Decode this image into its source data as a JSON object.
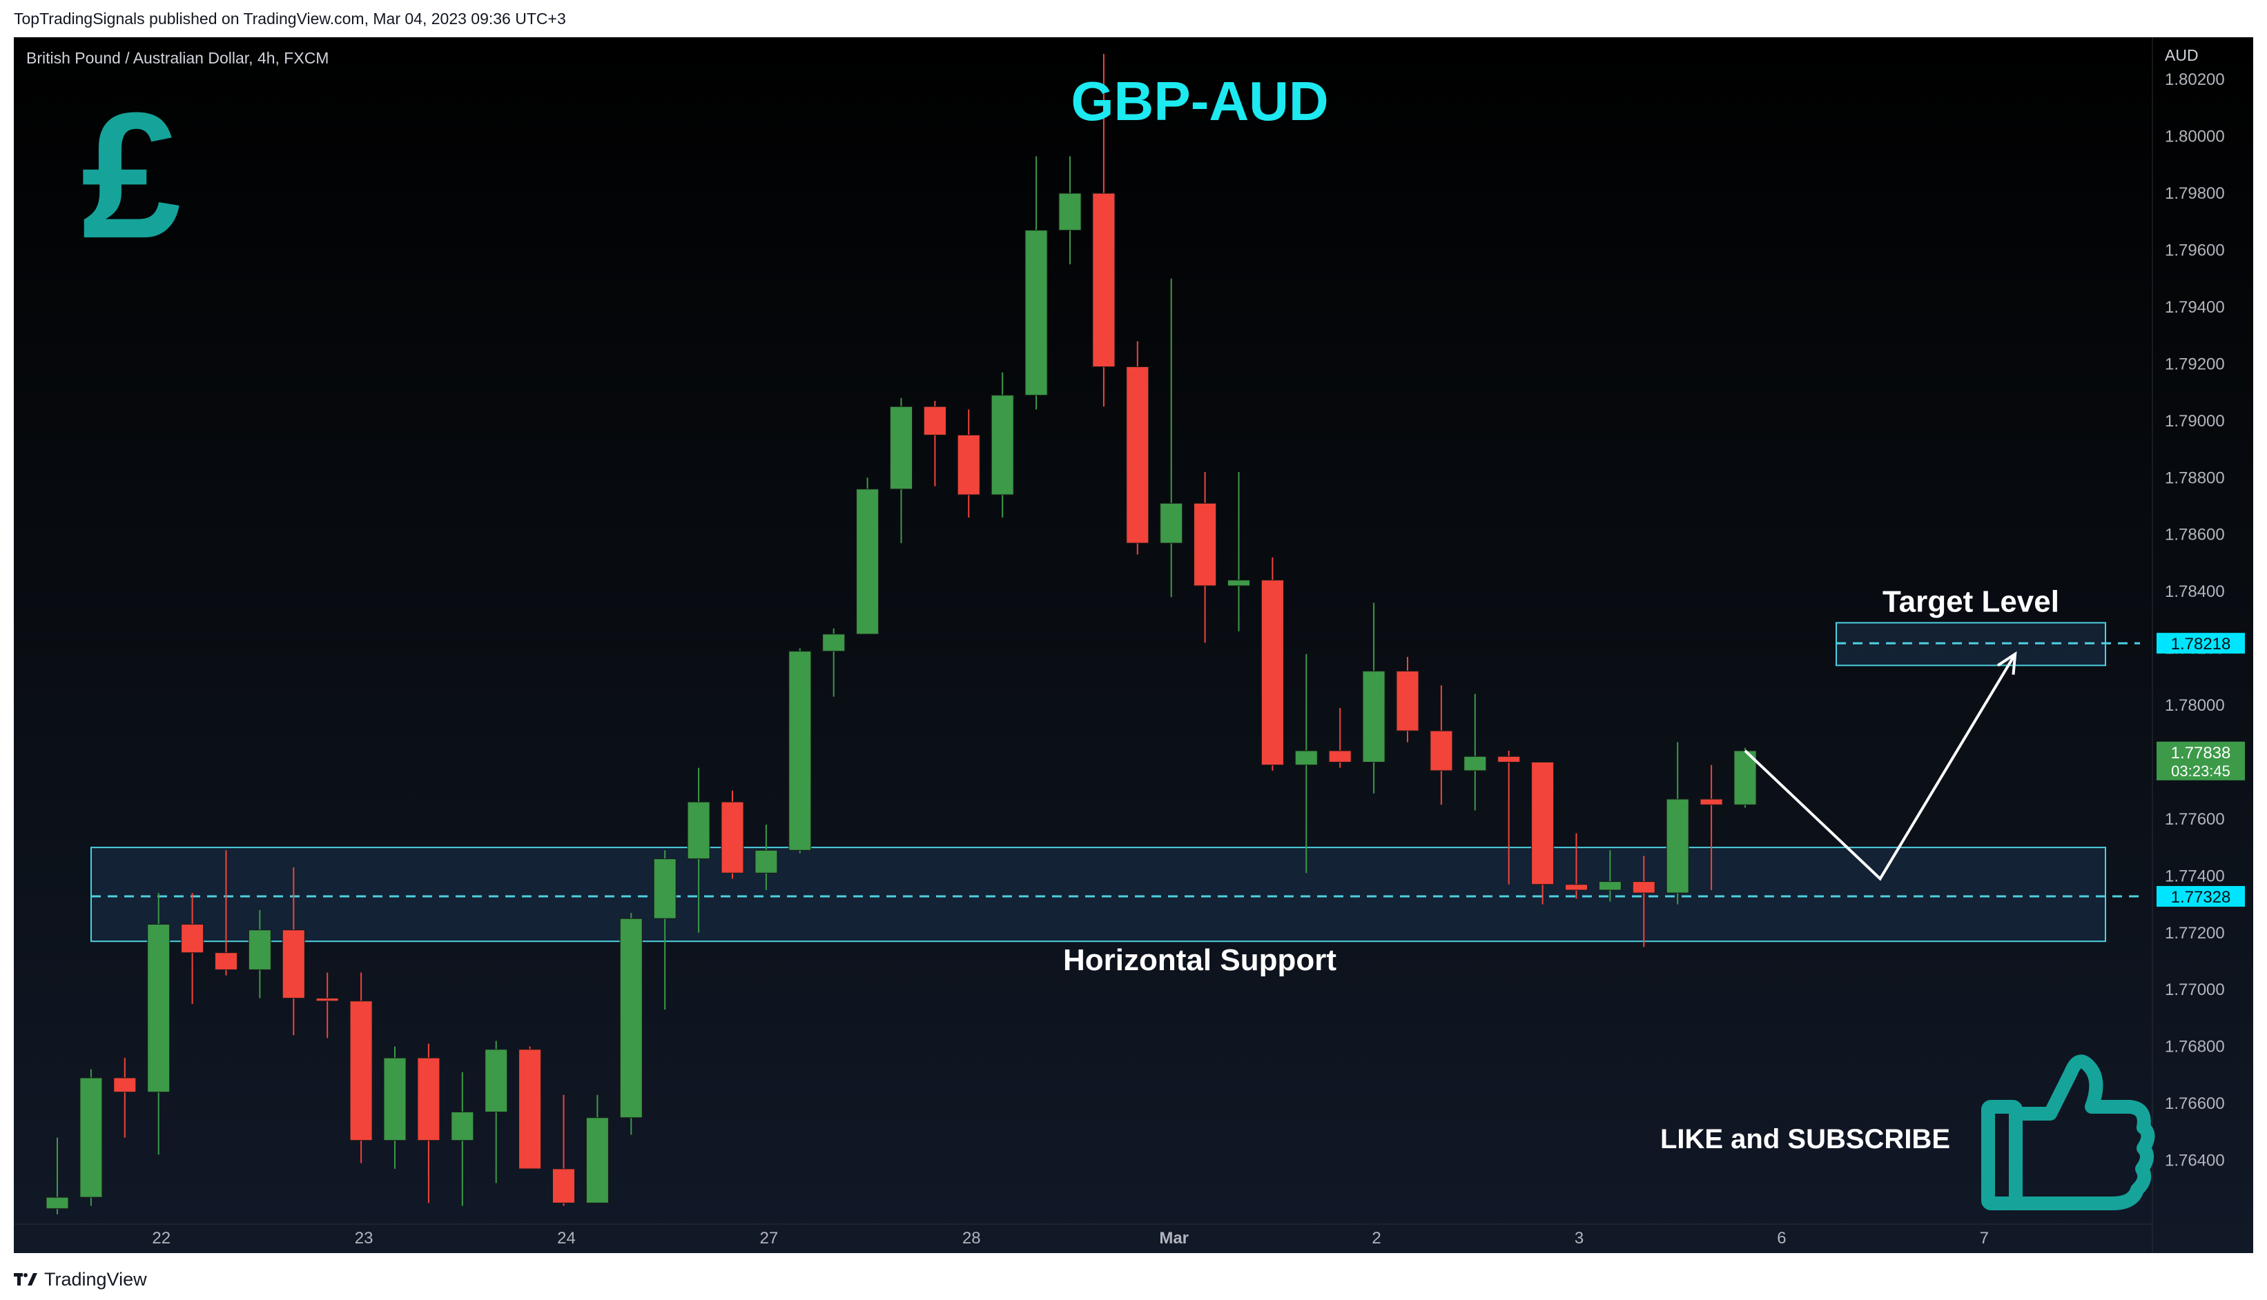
{
  "header": {
    "text": "TopTradingSignals published on TradingView.com, Mar 04, 2023 09:36 UTC+3"
  },
  "footer": {
    "brand": "TradingView"
  },
  "chart_data": {
    "type": "candlestick",
    "symbol_label": "British Pound / Australian Dollar, 4h, FXCM",
    "title": "GBP-AUD",
    "currency": "AUD",
    "ylim": [
      1.762,
      1.803
    ],
    "y_ticks": [
      "1.80200",
      "1.80000",
      "1.79800",
      "1.79600",
      "1.79400",
      "1.79200",
      "1.79000",
      "1.78800",
      "1.78600",
      "1.78400",
      "1.78200",
      "1.78000",
      "1.77800",
      "1.77600",
      "1.77400",
      "1.77200",
      "1.77000",
      "1.76800",
      "1.76600",
      "1.76400"
    ],
    "x_labels": [
      {
        "label": "22",
        "index": 3
      },
      {
        "label": "23",
        "index": 9
      },
      {
        "label": "24",
        "index": 15
      },
      {
        "label": "27",
        "index": 21
      },
      {
        "label": "28",
        "index": 27
      },
      {
        "label": "Mar",
        "index": 33
      },
      {
        "label": "2",
        "index": 39
      },
      {
        "label": "3",
        "index": 45
      },
      {
        "label": "6",
        "index": 51
      },
      {
        "label": "7",
        "index": 57
      }
    ],
    "candles": [
      {
        "o": 1.7623,
        "h": 1.7648,
        "l": 1.7621,
        "c": 1.7627
      },
      {
        "o": 1.7627,
        "h": 1.7672,
        "l": 1.7624,
        "c": 1.7669
      },
      {
        "o": 1.7669,
        "h": 1.7676,
        "l": 1.7648,
        "c": 1.7664
      },
      {
        "o": 1.7664,
        "h": 1.7734,
        "l": 1.7642,
        "c": 1.7723
      },
      {
        "o": 1.7723,
        "h": 1.7734,
        "l": 1.7695,
        "c": 1.7713
      },
      {
        "o": 1.7713,
        "h": 1.7749,
        "l": 1.7705,
        "c": 1.7707
      },
      {
        "o": 1.7707,
        "h": 1.7728,
        "l": 1.7697,
        "c": 1.7721
      },
      {
        "o": 1.7721,
        "h": 1.7743,
        "l": 1.7684,
        "c": 1.7697
      },
      {
        "o": 1.7697,
        "h": 1.7706,
        "l": 1.7683,
        "c": 1.7696
      },
      {
        "o": 1.7696,
        "h": 1.7706,
        "l": 1.7639,
        "c": 1.7647
      },
      {
        "o": 1.7647,
        "h": 1.768,
        "l": 1.7637,
        "c": 1.7676
      },
      {
        "o": 1.7676,
        "h": 1.7681,
        "l": 1.7625,
        "c": 1.7647
      },
      {
        "o": 1.7647,
        "h": 1.7671,
        "l": 1.7624,
        "c": 1.7657
      },
      {
        "o": 1.7657,
        "h": 1.7682,
        "l": 1.7632,
        "c": 1.7679
      },
      {
        "o": 1.7679,
        "h": 1.768,
        "l": 1.7637,
        "c": 1.7637
      },
      {
        "o": 1.7637,
        "h": 1.7663,
        "l": 1.7624,
        "c": 1.7625
      },
      {
        "o": 1.7625,
        "h": 1.7663,
        "l": 1.7625,
        "c": 1.7655
      },
      {
        "o": 1.7655,
        "h": 1.7727,
        "l": 1.7649,
        "c": 1.7725
      },
      {
        "o": 1.7725,
        "h": 1.7749,
        "l": 1.7693,
        "c": 1.7746
      },
      {
        "o": 1.7746,
        "h": 1.7778,
        "l": 1.772,
        "c": 1.7766
      },
      {
        "o": 1.7766,
        "h": 1.777,
        "l": 1.7739,
        "c": 1.7741
      },
      {
        "o": 1.7741,
        "h": 1.7758,
        "l": 1.7735,
        "c": 1.7749
      },
      {
        "o": 1.7749,
        "h": 1.782,
        "l": 1.7748,
        "c": 1.7819
      },
      {
        "o": 1.7819,
        "h": 1.7827,
        "l": 1.7803,
        "c": 1.7825
      },
      {
        "o": 1.7825,
        "h": 1.788,
        "l": 1.7825,
        "c": 1.7876
      },
      {
        "o": 1.7876,
        "h": 1.7908,
        "l": 1.7857,
        "c": 1.7905
      },
      {
        "o": 1.7905,
        "h": 1.7907,
        "l": 1.7877,
        "c": 1.7895
      },
      {
        "o": 1.7895,
        "h": 1.7904,
        "l": 1.7866,
        "c": 1.7874
      },
      {
        "o": 1.7874,
        "h": 1.7917,
        "l": 1.7866,
        "c": 1.7909
      },
      {
        "o": 1.7909,
        "h": 1.7993,
        "l": 1.7904,
        "c": 1.7967
      },
      {
        "o": 1.7967,
        "h": 1.7993,
        "l": 1.7955,
        "c": 1.798
      },
      {
        "o": 1.798,
        "h": 1.8029,
        "l": 1.7905,
        "c": 1.7919
      },
      {
        "o": 1.7919,
        "h": 1.7928,
        "l": 1.7853,
        "c": 1.7857
      },
      {
        "o": 1.7857,
        "h": 1.795,
        "l": 1.7838,
        "c": 1.7871
      },
      {
        "o": 1.7871,
        "h": 1.7882,
        "l": 1.7822,
        "c": 1.7842
      },
      {
        "o": 1.7842,
        "h": 1.7882,
        "l": 1.7826,
        "c": 1.7844
      },
      {
        "o": 1.7844,
        "h": 1.7852,
        "l": 1.7777,
        "c": 1.7779
      },
      {
        "o": 1.7779,
        "h": 1.7818,
        "l": 1.7741,
        "c": 1.7784
      },
      {
        "o": 1.7784,
        "h": 1.7799,
        "l": 1.7778,
        "c": 1.778
      },
      {
        "o": 1.778,
        "h": 1.7836,
        "l": 1.7769,
        "c": 1.7812
      },
      {
        "o": 1.7812,
        "h": 1.7817,
        "l": 1.7787,
        "c": 1.7791
      },
      {
        "o": 1.7791,
        "h": 1.7807,
        "l": 1.7765,
        "c": 1.7777
      },
      {
        "o": 1.7777,
        "h": 1.7804,
        "l": 1.7763,
        "c": 1.7782
      },
      {
        "o": 1.7782,
        "h": 1.7784,
        "l": 1.7737,
        "c": 1.778
      },
      {
        "o": 1.778,
        "h": 1.778,
        "l": 1.773,
        "c": 1.7737
      },
      {
        "o": 1.7737,
        "h": 1.7755,
        "l": 1.7732,
        "c": 1.7735
      },
      {
        "o": 1.7735,
        "h": 1.7749,
        "l": 1.7731,
        "c": 1.7738
      },
      {
        "o": 1.7738,
        "h": 1.7747,
        "l": 1.7715,
        "c": 1.7734
      },
      {
        "o": 1.7734,
        "h": 1.7787,
        "l": 1.773,
        "c": 1.7767
      },
      {
        "o": 1.7767,
        "h": 1.7779,
        "l": 1.7735,
        "c": 1.7765
      },
      {
        "o": 1.7765,
        "h": 1.7785,
        "l": 1.7764,
        "c": 1.7784
      }
    ],
    "support_zone": {
      "low": 1.7717,
      "high": 1.775,
      "level": 1.77328,
      "label": "Horizontal Support",
      "price_label": "1.77328"
    },
    "target_zone": {
      "low": 1.7814,
      "high": 1.7829,
      "level": 1.78218,
      "label": "Target Level",
      "price_label": "1.78218"
    },
    "current_price": {
      "value": 1.77838,
      "label": "1.77838",
      "countdown": "03:23:45"
    },
    "projection": [
      {
        "index": 50,
        "price": 1.7784
      },
      {
        "index": 54,
        "price": 1.7739
      },
      {
        "index": 58,
        "price": 1.7818
      }
    ],
    "cta_text": "LIKE and SUBSCRIBE",
    "colors": {
      "up": "#3c9a48",
      "down": "#f2443a",
      "zone": "#4dd0e1",
      "zone_fill": "#15263a",
      "title": "#1de9f0",
      "logo": "#16a39a",
      "text": "#ffffff",
      "axis": "#b2b5be",
      "price_tag": "#00e5ff"
    }
  }
}
